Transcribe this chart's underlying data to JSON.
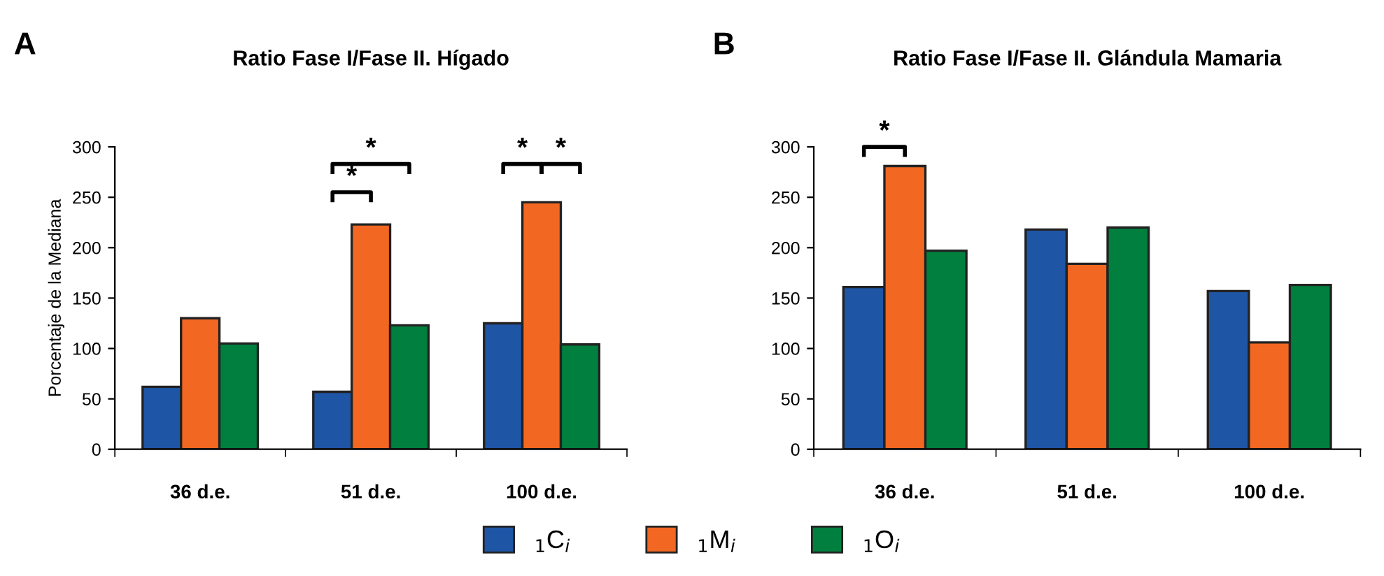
{
  "chart_data": [
    {
      "type": "bar",
      "title": "Ratio Fase I/Fase II. Hígado",
      "ylabel": "Porcentaje de la Mediana",
      "categories": [
        "36 d.e.",
        "51 d.e.",
        "100 d.e."
      ],
      "series": [
        {
          "name": "$_{1}$C$_{i}$",
          "color": "#1f55a5",
          "values": [
            62,
            57,
            125
          ]
        },
        {
          "name": "$_{1}$M$_{i}$",
          "color": "#f26722",
          "values": [
            130,
            223,
            245
          ]
        },
        {
          "name": "$_{1}$O$_{i}$",
          "color": "#007f3e",
          "values": [
            105,
            123,
            104
          ]
        }
      ],
      "ylim": [
        0,
        300
      ],
      "yticks": [
        0,
        50,
        100,
        150,
        200,
        250,
        300
      ],
      "grid": false,
      "legend": "bottom",
      "annotations": [
        "A",
        "*",
        "*",
        "*",
        "*"
      ]
    },
    {
      "type": "bar",
      "title": "Ratio Fase I/Fase II. Glándula Mamaria",
      "categories": [
        "36 d.e.",
        "51 d.e.",
        "100 d.e."
      ],
      "series": [
        {
          "color": "#1f55a5",
          "values": [
            161,
            218,
            157
          ]
        },
        {
          "color": "#f26722",
          "values": [
            281,
            184,
            106
          ]
        },
        {
          "color": "#007f3e",
          "values": [
            197,
            220,
            163
          ]
        }
      ],
      "ylim": [
        0,
        300
      ],
      "yticks": [
        0,
        50,
        100,
        150,
        200,
        250,
        300
      ],
      "grid": false,
      "annotations": [
        "B",
        "*"
      ]
    }
  ]
}
